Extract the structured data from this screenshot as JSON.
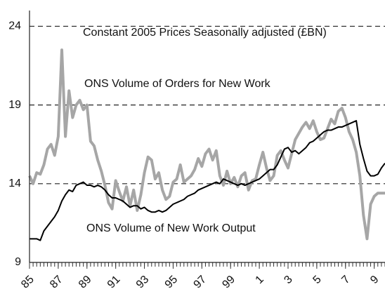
{
  "chart_data": {
    "type": "line",
    "annotations": [
      "Constant 2005 Prices Seasonally adjusted (£BN)",
      "ONS Volume of Orders for New Work",
      "ONS Volume of New Work Output"
    ],
    "x": [
      1985,
      1985.25,
      1985.5,
      1985.75,
      1986,
      1986.25,
      1986.5,
      1986.75,
      1987,
      1987.25,
      1987.5,
      1987.75,
      1988,
      1988.25,
      1988.5,
      1988.75,
      1989,
      1989.25,
      1989.5,
      1989.75,
      1990,
      1990.25,
      1990.5,
      1990.75,
      1991,
      1991.25,
      1991.5,
      1991.75,
      1992,
      1992.25,
      1992.5,
      1992.75,
      1993,
      1993.25,
      1993.5,
      1993.75,
      1994,
      1994.25,
      1994.5,
      1994.75,
      1995,
      1995.25,
      1995.5,
      1995.75,
      1996,
      1996.25,
      1996.5,
      1996.75,
      1997,
      1997.25,
      1997.5,
      1997.75,
      1998,
      1998.25,
      1998.5,
      1998.75,
      1999,
      1999.25,
      1999.5,
      1999.75,
      2000,
      2000.25,
      2000.5,
      2000.75,
      2001,
      2001.25,
      2001.5,
      2001.75,
      2002,
      2002.25,
      2002.5,
      2002.75,
      2003,
      2003.25,
      2003.5,
      2003.75,
      2004,
      2004.25,
      2004.5,
      2004.75,
      2005,
      2005.25,
      2005.5,
      2005.75,
      2006,
      2006.25,
      2006.5,
      2006.75,
      2007,
      2007.25,
      2007.5,
      2007.75,
      2008,
      2008.25,
      2008.5,
      2008.75,
      2009,
      2009.25,
      2009.5,
      2009.75
    ],
    "series": [
      {
        "name": "ONS Volume of Orders for New Work",
        "color": "#a6a6a6",
        "width": 4,
        "values": [
          14.5,
          14,
          14.7,
          14.6,
          15.2,
          16.2,
          16.5,
          15.8,
          17,
          22.5,
          17,
          19.9,
          18.2,
          19,
          19.3,
          18.7,
          19,
          16.7,
          16.4,
          15.5,
          14.8,
          13.9,
          12.8,
          12.4,
          14.2,
          13.5,
          12.9,
          13.8,
          12.6,
          13.6,
          12.3,
          13.3,
          14.7,
          15.7,
          15.5,
          14.3,
          14.7,
          13.6,
          13,
          13.2,
          14.1,
          14.3,
          15.2,
          14.1,
          14.3,
          14.5,
          14.9,
          15.6,
          15.1,
          15.9,
          16.2,
          15.5,
          16.1,
          14.5,
          13.9,
          14.8,
          14,
          14.4,
          13.8,
          14.5,
          14.7,
          13.6,
          14.2,
          14.3,
          15.2,
          16,
          15,
          14.2,
          14.5,
          15.8,
          16.1,
          15.5,
          15,
          15.9,
          16.8,
          17.2,
          17.6,
          17.9,
          17.5,
          18,
          17.3,
          16.8,
          16.9,
          17.5,
          18.1,
          17.8,
          18.6,
          18.8,
          18.2,
          17.3,
          16.8,
          16,
          14.5,
          12,
          10.5,
          12.7,
          13.2,
          13.4,
          13.4,
          13.4
        ]
      },
      {
        "name": "ONS Volume of New Work Output",
        "color": "#000000",
        "width": 2,
        "values": [
          10.5,
          10.5,
          10.5,
          10.4,
          11,
          11.3,
          11.6,
          11.9,
          12.3,
          12.9,
          13.3,
          13.6,
          13.5,
          13.9,
          14,
          14.1,
          13.9,
          13.9,
          13.8,
          13.9,
          13.8,
          13.6,
          13.3,
          13.1,
          13.1,
          13,
          12.9,
          12.7,
          12.5,
          12.6,
          12.6,
          12.4,
          12.5,
          12.3,
          12.2,
          12.2,
          12.3,
          12.2,
          12.3,
          12.5,
          12.7,
          12.8,
          12.9,
          13,
          13.2,
          13.3,
          13.4,
          13.6,
          13.7,
          13.8,
          13.9,
          14,
          14.1,
          14,
          14.3,
          14.2,
          14.1,
          14,
          13.9,
          14,
          13.9,
          14,
          14.1,
          14.2,
          14.3,
          14.5,
          14.7,
          14.9,
          14.9,
          15.2,
          15.7,
          16.2,
          16.3,
          16,
          16.1,
          15.9,
          16.1,
          16.3,
          16.6,
          16.7,
          16.9,
          17.1,
          17.3,
          17.4,
          17.4,
          17.5,
          17.6,
          17.6,
          17.7,
          17.8,
          17.9,
          18,
          16.5,
          15.6,
          14.8,
          14.5,
          14.5,
          14.6,
          15,
          15.3
        ]
      }
    ],
    "xlim": [
      1985,
      2009.75
    ],
    "xticks": [
      {
        "value": 1985,
        "label": "85"
      },
      {
        "value": 1987,
        "label": "87"
      },
      {
        "value": 1989,
        "label": "89"
      },
      {
        "value": 1991,
        "label": "91"
      },
      {
        "value": 1993,
        "label": "93"
      },
      {
        "value": 1995,
        "label": "95"
      },
      {
        "value": 1997,
        "label": "97"
      },
      {
        "value": 1999,
        "label": "99"
      },
      {
        "value": 2001,
        "label": "1"
      },
      {
        "value": 2003,
        "label": "3"
      },
      {
        "value": 2005,
        "label": "5"
      },
      {
        "value": 2007,
        "label": "7"
      },
      {
        "value": 2009,
        "label": "9"
      }
    ],
    "ylim": [
      9,
      25
    ],
    "yticks": [
      9,
      14,
      19,
      24
    ],
    "grid": true,
    "grid_style": "dashed"
  }
}
